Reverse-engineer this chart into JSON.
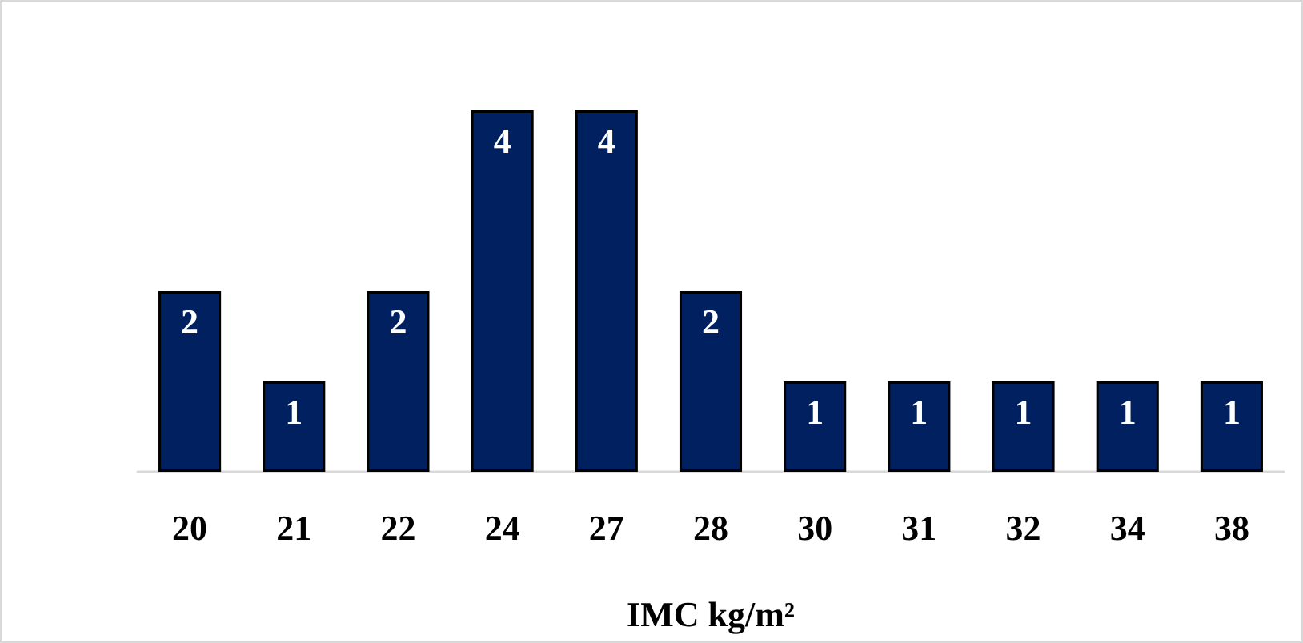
{
  "chart_data": {
    "type": "bar",
    "xlabel": "IMC kg/m²",
    "categories": [
      "20",
      "21",
      "22",
      "24",
      "27",
      "28",
      "30",
      "31",
      "32",
      "34",
      "38"
    ],
    "values": [
      2,
      1,
      2,
      4,
      4,
      2,
      1,
      1,
      1,
      1,
      1
    ],
    "color": "#002060",
    "data_labels": true
  }
}
